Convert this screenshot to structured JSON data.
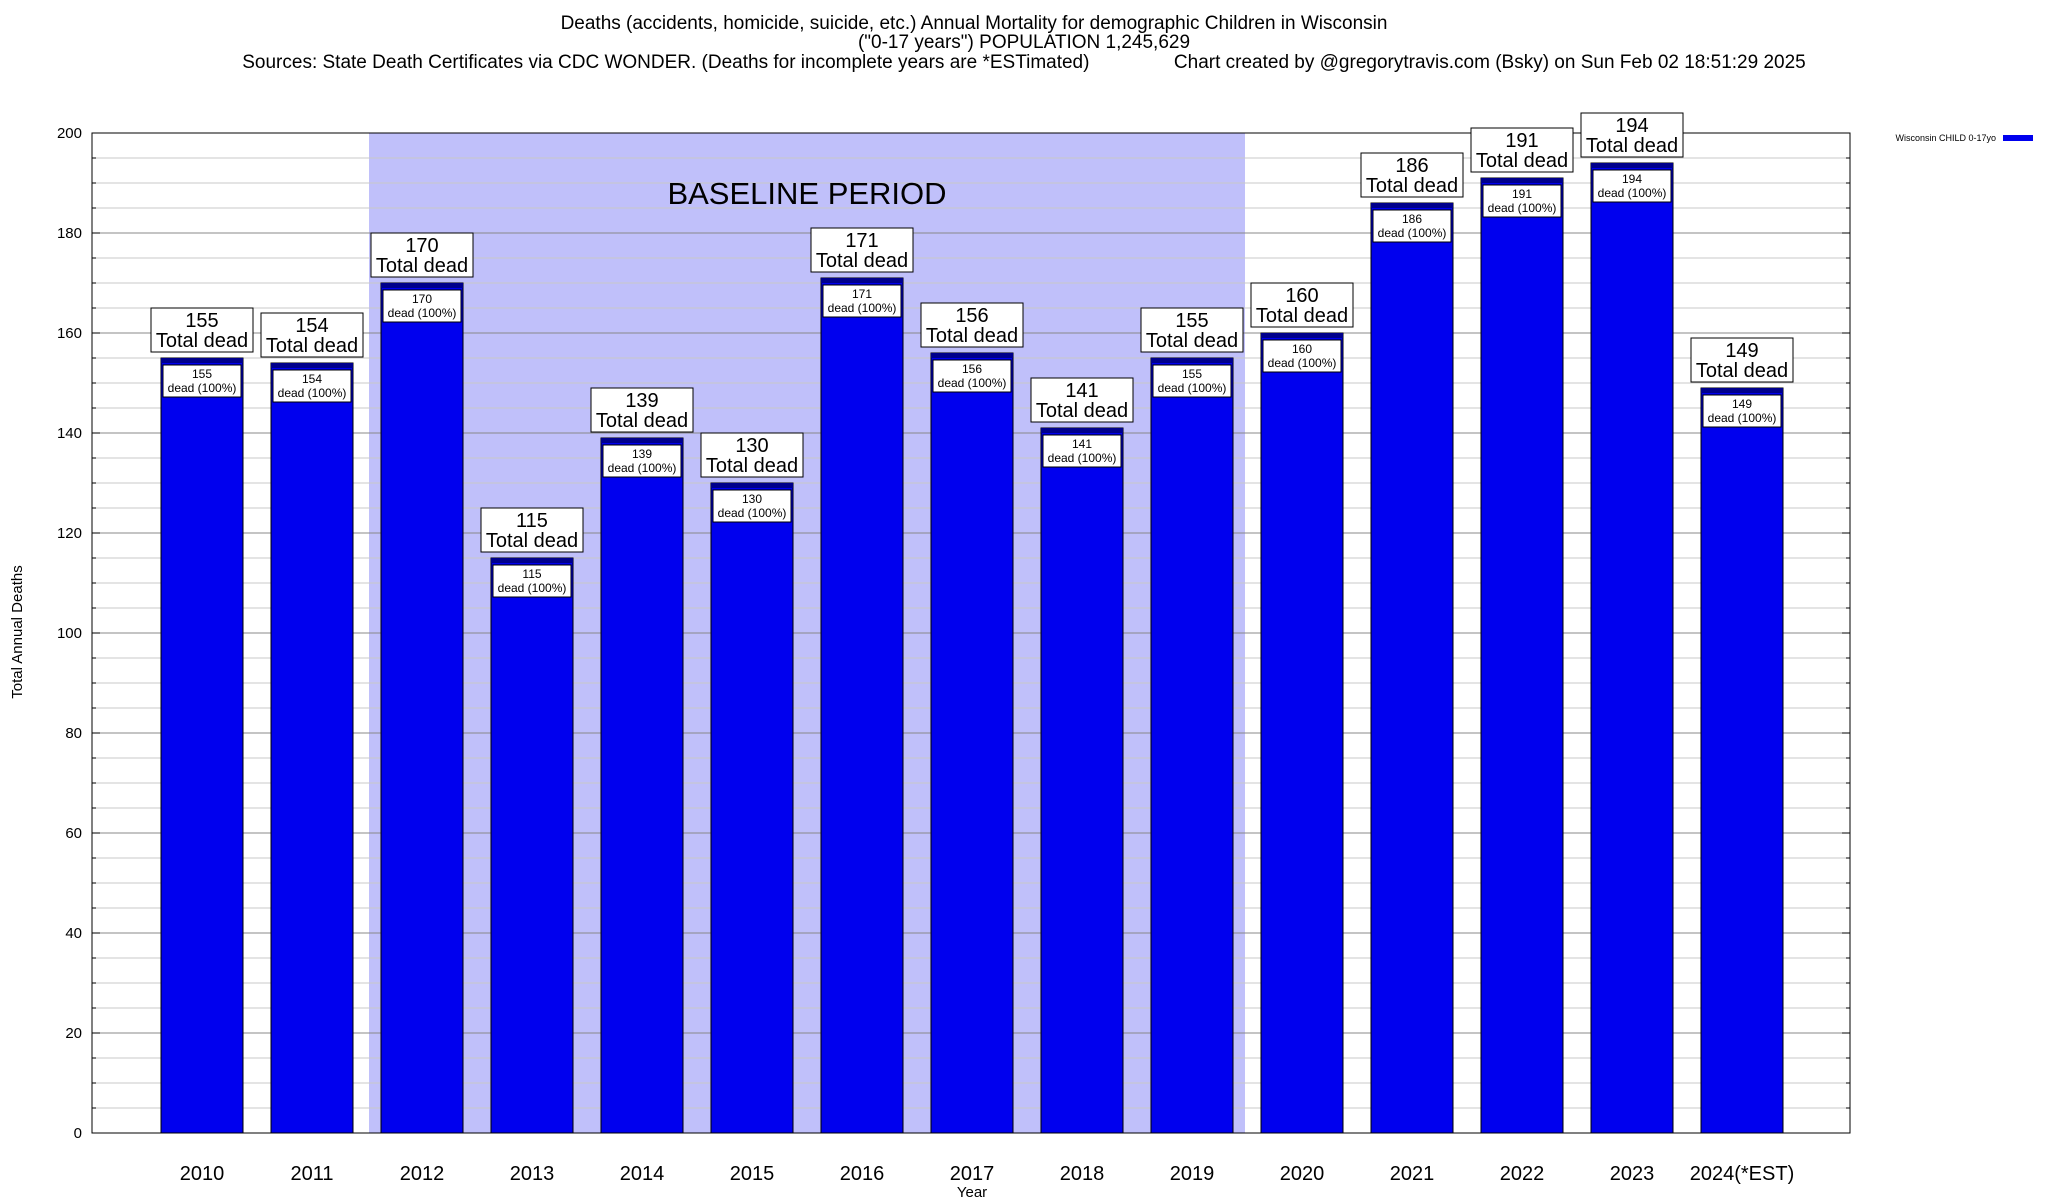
{
  "header": {
    "line1": "Deaths (accidents, homicide, suicide, etc.) Annual Mortality for demographic Children in Wisconsin",
    "line2": "(\"0-17 years\") POPULATION 1,245,629",
    "line3": "Sources: State Death Certificates via CDC WONDER. (Deaths for incomplete years are *ESTimated)                Chart created by @gregorytravis.com (Bsky) on Sun Feb 02 18:51:29 2025"
  },
  "chart_data": {
    "type": "bar",
    "title": "Deaths (accidents, homicide, suicide, etc.) Annual Mortality for demographic Children in Wisconsin",
    "xlabel": "Year",
    "ylabel": "Total Annual Deaths",
    "ylim": [
      0,
      200
    ],
    "y_ticks": [
      0,
      20,
      40,
      60,
      80,
      100,
      120,
      140,
      160,
      180,
      200
    ],
    "grid": true,
    "legend_position": "top-right",
    "categories": [
      "2010",
      "2011",
      "2012",
      "2013",
      "2014",
      "2015",
      "2016",
      "2017",
      "2018",
      "2019",
      "2020",
      "2021",
      "2022",
      "2023",
      "2024(*EST)"
    ],
    "series": [
      {
        "name": "Wisconsin CHILD 0-17yo",
        "values": [
          155,
          154,
          170,
          115,
          139,
          130,
          171,
          156,
          141,
          155,
          160,
          186,
          191,
          194,
          149
        ]
      }
    ],
    "total_label_suffix": "Total dead",
    "inner_label_suffix": "dead (100%)",
    "shaded_region": {
      "label": "BASELINE PERIOD",
      "from_category": "2012",
      "to_category": "2019"
    },
    "colors": {
      "bar": "#0000ee",
      "bar_top": "#00008b",
      "baseline_shade": "#c0c0fa"
    }
  }
}
